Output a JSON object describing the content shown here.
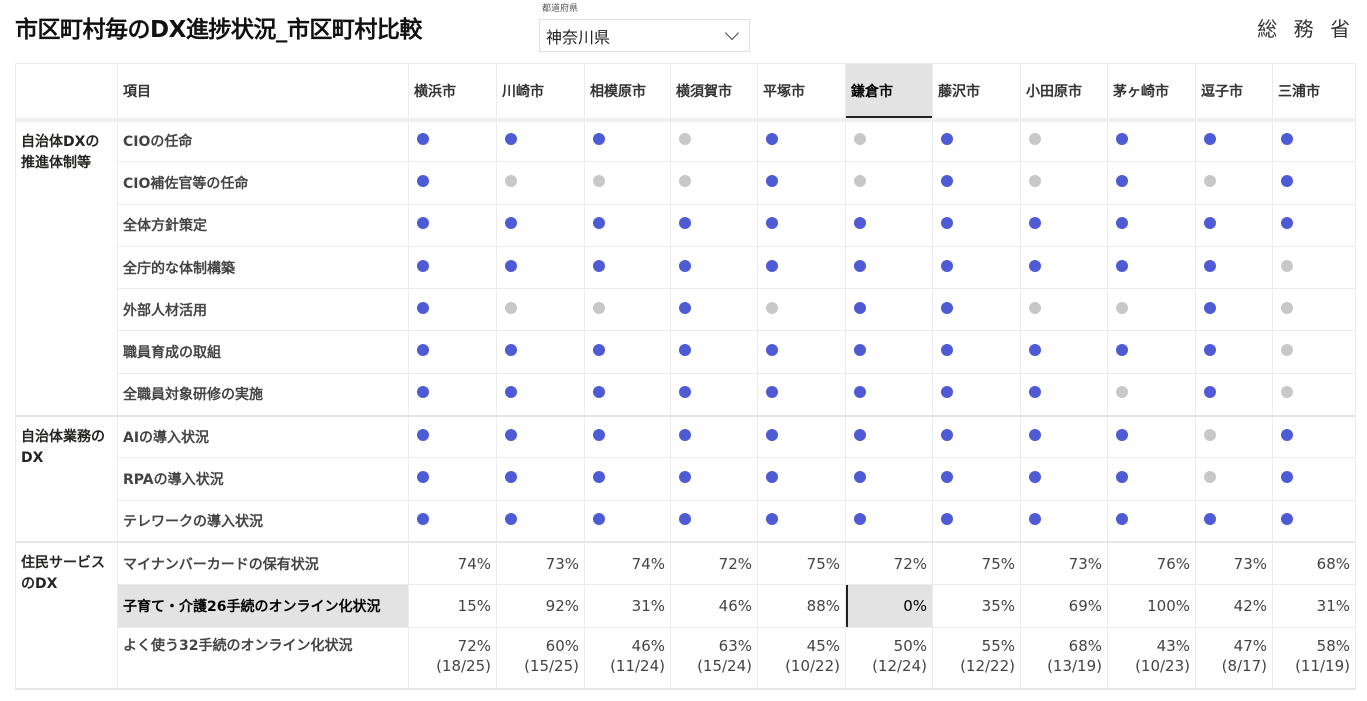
{
  "header": {
    "title": "市区町村毎のDX進捗状況_市区町村比較",
    "slicer_label": "都道府県",
    "slicer_value": "神奈川県",
    "logo": "総 務 省"
  },
  "colors": {
    "yes": "#4f5bd5",
    "no": "#c8c8c8"
  },
  "table": {
    "item_header": "項目",
    "selected_city": "鎌倉市",
    "cities": [
      "横浜市",
      "川崎市",
      "相模原市",
      "横須賀市",
      "平塚市",
      "鎌倉市",
      "藤沢市",
      "小田原市",
      "茅ヶ崎市",
      "逗子市",
      "三浦市"
    ],
    "groups": [
      {
        "label": "自治体DXの推進体制等",
        "rows": [
          {
            "item": "CIOの任命",
            "status": [
              1,
              1,
              1,
              0,
              1,
              0,
              1,
              0,
              1,
              1,
              1
            ]
          },
          {
            "item": "CIO補佐官等の任命",
            "status": [
              1,
              0,
              0,
              0,
              1,
              0,
              1,
              0,
              1,
              0,
              1
            ]
          },
          {
            "item": "全体方針策定",
            "status": [
              1,
              1,
              1,
              1,
              1,
              1,
              1,
              1,
              1,
              1,
              1
            ]
          },
          {
            "item": "全庁的な体制構築",
            "status": [
              1,
              1,
              1,
              1,
              1,
              1,
              1,
              1,
              1,
              1,
              0
            ]
          },
          {
            "item": "外部人材活用",
            "status": [
              1,
              0,
              0,
              1,
              0,
              1,
              1,
              0,
              0,
              1,
              0
            ]
          },
          {
            "item": "職員育成の取組",
            "status": [
              1,
              1,
              1,
              1,
              1,
              1,
              1,
              1,
              1,
              1,
              0
            ]
          },
          {
            "item": "全職員対象研修の実施",
            "status": [
              1,
              1,
              1,
              1,
              1,
              1,
              1,
              1,
              0,
              1,
              0
            ]
          }
        ]
      },
      {
        "label": "自治体業務のDX",
        "rows": [
          {
            "item": "AIの導入状況",
            "status": [
              1,
              1,
              1,
              1,
              1,
              1,
              1,
              1,
              1,
              0,
              1
            ]
          },
          {
            "item": "RPAの導入状況",
            "status": [
              1,
              1,
              1,
              1,
              1,
              1,
              1,
              1,
              1,
              0,
              1
            ]
          },
          {
            "item": "テレワークの導入状況",
            "status": [
              1,
              1,
              1,
              1,
              1,
              1,
              1,
              1,
              1,
              1,
              1
            ]
          }
        ]
      },
      {
        "label": "住民サービスのDX",
        "rows": [
          {
            "item": "マイナンバーカードの保有状況",
            "values": [
              "74%",
              "73%",
              "74%",
              "72%",
              "75%",
              "72%",
              "75%",
              "73%",
              "76%",
              "73%",
              "68%"
            ]
          },
          {
            "item": "子育て・介護26手続のオンライン化状況",
            "highlight": true,
            "values": [
              "15%",
              "92%",
              "31%",
              "46%",
              "88%",
              "0%",
              "35%",
              "69%",
              "100%",
              "42%",
              "31%"
            ]
          },
          {
            "item": "よく使う32手続のオンライン化状況",
            "values": [
              "72%",
              "60%",
              "46%",
              "63%",
              "45%",
              "50%",
              "55%",
              "68%",
              "43%",
              "47%",
              "58%"
            ],
            "sub": [
              "(18/25)",
              "(15/25)",
              "(11/24)",
              "(15/24)",
              "(10/22)",
              "(12/24)",
              "(12/22)",
              "(13/19)",
              "(10/23)",
              "(8/17)",
              "(11/19)"
            ]
          }
        ]
      }
    ]
  }
}
